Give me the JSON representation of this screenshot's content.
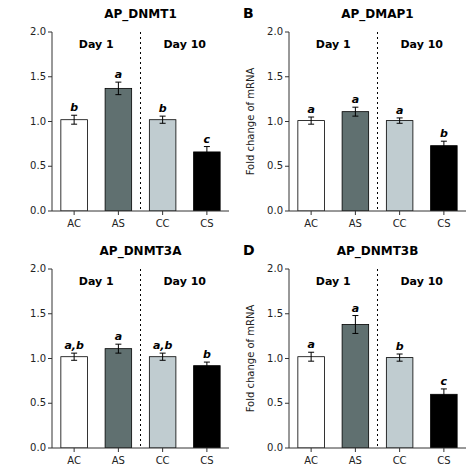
{
  "chart_data": [
    {
      "type": "bar",
      "title": "AP_DNMT1",
      "categories": [
        "AC",
        "AS",
        "CC",
        "CS"
      ],
      "values": [
        1.02,
        1.37,
        1.02,
        0.66
      ],
      "errors": [
        0.05,
        0.07,
        0.04,
        0.06
      ],
      "colors": [
        "#ffffff",
        "#607070",
        "#c0ccd0",
        "#000000"
      ],
      "sig_labels": [
        "b",
        "a",
        "b",
        "c"
      ],
      "group_labels": [
        "Day 1",
        "Day 10"
      ],
      "ylim": [
        0.0,
        2.0
      ],
      "yticks": [
        {
          "value": 0,
          "label": "0.0"
        },
        0.5,
        {
          "value": 1,
          "label": "1.0"
        },
        1.5,
        {
          "value": 2,
          "label": "2.0"
        }
      ],
      "grid": false
    },
    {
      "type": "bar",
      "title": "AP_DMAP1",
      "panel_label": "B",
      "ylabel": "Fold change of mRNA",
      "categories": [
        "AC",
        "AS",
        "CC",
        "CS"
      ],
      "values": [
        1.01,
        1.11,
        1.01,
        0.73
      ],
      "errors": [
        0.04,
        0.05,
        0.03,
        0.05
      ],
      "colors": [
        "#ffffff",
        "#607070",
        "#c0ccd0",
        "#000000"
      ],
      "sig_labels": [
        "a",
        "a",
        "a",
        "b"
      ],
      "group_labels": [
        "Day 1",
        "Day 10"
      ],
      "ylim": [
        0.0,
        2.0
      ],
      "yticks": [
        {
          "value": 0,
          "label": "0.0"
        },
        0.5,
        {
          "value": 1,
          "label": "1.0"
        },
        1.5,
        {
          "value": 2,
          "label": "2.0"
        }
      ],
      "grid": false
    },
    {
      "type": "bar",
      "title": "AP_DNMT3A",
      "categories": [
        "AC",
        "AS",
        "CC",
        "CS"
      ],
      "values": [
        1.02,
        1.11,
        1.02,
        0.92
      ],
      "errors": [
        0.04,
        0.05,
        0.04,
        0.04
      ],
      "colors": [
        "#ffffff",
        "#607070",
        "#c0ccd0",
        "#000000"
      ],
      "sig_labels": [
        "a,b",
        "a",
        "a,b",
        "b"
      ],
      "group_labels": [
        "Day 1",
        "Day 10"
      ],
      "ylim": [
        0.0,
        2.0
      ],
      "yticks": [
        {
          "value": 0,
          "label": "0.0"
        },
        0.5,
        {
          "value": 1,
          "label": "1.0"
        },
        1.5,
        {
          "value": 2,
          "label": "2.0"
        }
      ],
      "grid": false
    },
    {
      "type": "bar",
      "title": "AP_DNMT3B",
      "panel_label": "D",
      "ylabel": "Fold change of mRNA",
      "categories": [
        "AC",
        "AS",
        "CC",
        "CS"
      ],
      "values": [
        1.02,
        1.38,
        1.01,
        0.6
      ],
      "errors": [
        0.05,
        0.1,
        0.04,
        0.06
      ],
      "colors": [
        "#ffffff",
        "#607070",
        "#c0ccd0",
        "#000000"
      ],
      "sig_labels": [
        "a",
        "a",
        "b",
        "c"
      ],
      "group_labels": [
        "Day 1",
        "Day 10"
      ],
      "ylim": [
        0.0,
        2.0
      ],
      "yticks": [
        {
          "value": 0,
          "label": "0.0"
        },
        0.5,
        {
          "value": 1,
          "label": "1.0"
        },
        1.5,
        {
          "value": 2,
          "label": "2.0"
        }
      ],
      "grid": false
    }
  ]
}
